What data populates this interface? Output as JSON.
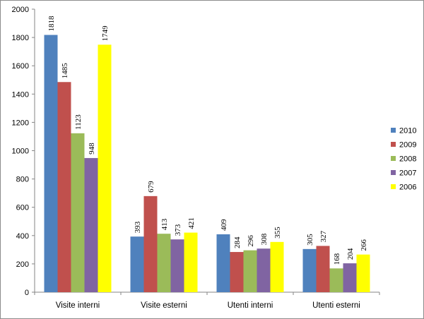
{
  "chart_data": {
    "type": "bar",
    "categories": [
      "Visite interni",
      "Visite esterni",
      "Utenti interni",
      "Utenti esterni"
    ],
    "series": [
      {
        "name": "2010",
        "color": "#4F81BD",
        "values": [
          1818,
          393,
          409,
          305
        ]
      },
      {
        "name": "2009",
        "color": "#C0504D",
        "values": [
          1485,
          679,
          284,
          327
        ]
      },
      {
        "name": "2008",
        "color": "#9BBB59",
        "values": [
          1123,
          413,
          296,
          168
        ]
      },
      {
        "name": "2007",
        "color": "#8064A2",
        "values": [
          948,
          373,
          308,
          204
        ]
      },
      {
        "name": "2006",
        "color": "#FFFF00",
        "values": [
          1749,
          421,
          355,
          266
        ]
      }
    ],
    "ylim": [
      0,
      2000
    ],
    "yticks": [
      0,
      200,
      400,
      600,
      800,
      1000,
      1200,
      1400,
      1600,
      1800,
      2000
    ],
    "grid": false,
    "legend_position": "right",
    "data_labels": true
  }
}
